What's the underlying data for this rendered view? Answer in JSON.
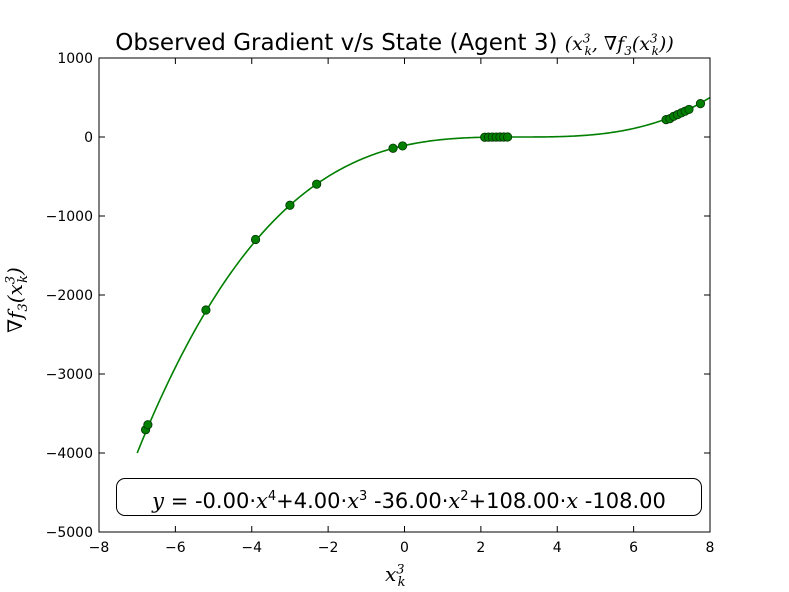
{
  "chart_data": {
    "type": "scatter",
    "title": "Observed Gradient v/s State (Agent 3)",
    "title_math": "(x_k^3, ∇f_3(x_k^3))",
    "xlabel": "x_k^3",
    "ylabel": "∇f_3(x_k^3)",
    "xlim": [
      -8,
      8
    ],
    "ylim": [
      -5000,
      1000
    ],
    "x_ticks": [
      -8,
      -6,
      -4,
      -2,
      0,
      2,
      4,
      6,
      8
    ],
    "x_tick_labels": [
      "−8",
      "−6",
      "−4",
      "−2",
      "0",
      "2",
      "4",
      "6",
      "8"
    ],
    "y_ticks": [
      -5000,
      -4000,
      -3000,
      -2000,
      -1000,
      0,
      1000
    ],
    "y_tick_labels": [
      "−5000",
      "−4000",
      "−3000",
      "−2000",
      "−1000",
      "0",
      "1000"
    ],
    "grid": false,
    "series": [
      {
        "kind": "fit_curve",
        "color": "#007f00",
        "x_range": [
          -7,
          8
        ],
        "coefficients": {
          "x4": 0.0,
          "x3": 4.0,
          "x2": -36.0,
          "x1": 108.0,
          "x0": -108.0
        }
      },
      {
        "kind": "points",
        "color": "#007f00",
        "edge_color": "#003300",
        "x": [
          -6.78,
          -6.72,
          -5.2,
          -3.9,
          -3.0,
          -2.3,
          -0.3,
          -0.05,
          2.1,
          2.2,
          2.3,
          2.4,
          2.5,
          2.6,
          2.7,
          6.85,
          6.95,
          7.05,
          7.15,
          7.25,
          7.35,
          7.45,
          7.75
        ],
        "y": [
          -3705,
          -3642,
          -2190,
          -1297,
          -864,
          -597,
          -142,
          -113,
          -3,
          -2,
          -1,
          -1,
          0,
          0,
          0,
          220,
          232,
          262,
          283,
          305,
          327,
          349,
          422
        ]
      }
    ]
  },
  "equation": {
    "lhs": "y",
    "eq": " = -0.00",
    "t1": "x",
    "t1_exp": "4",
    "p2": "+4.00",
    "t2": "x",
    "t2_exp": "3",
    "p3": " -36.00",
    "t3": "x",
    "t3_exp": "2",
    "p4": "+108.00",
    "t4": "x",
    "p5": " -108.00"
  },
  "colors": {
    "series": "#007f00",
    "axes": "#000000"
  }
}
